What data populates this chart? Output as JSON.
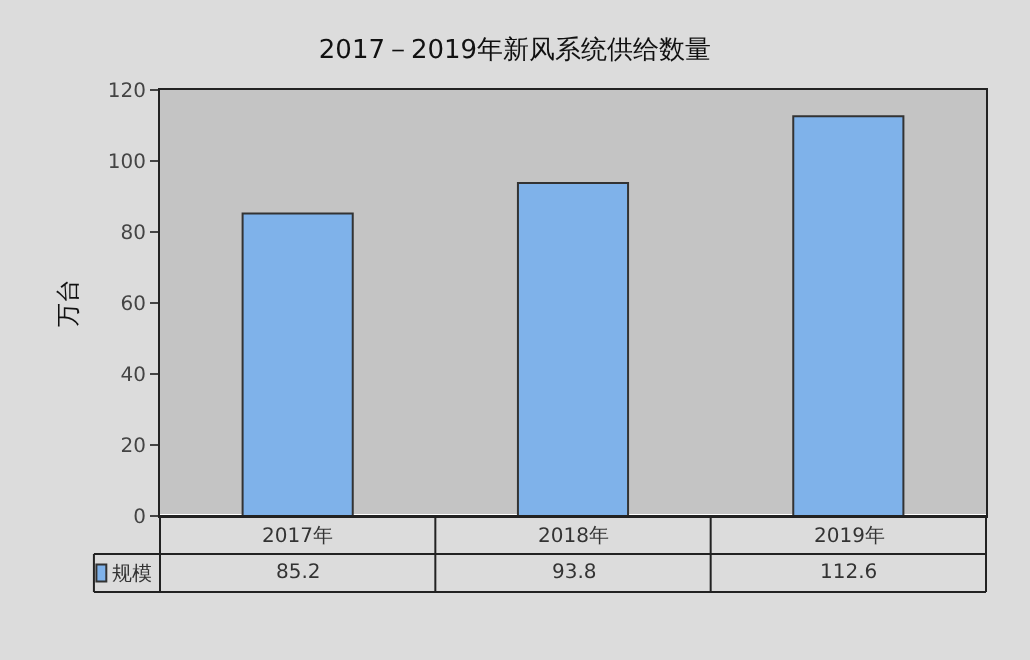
{
  "chart_data": {
    "type": "bar",
    "title": "2017－2019年新风系统供给数量",
    "ylabel": "万台",
    "categories": [
      "2017年",
      "2018年",
      "2019年"
    ],
    "series": [
      {
        "name": "规模",
        "color": "#7fb2ea",
        "values": [
          85.2,
          93.8,
          112.6
        ]
      }
    ],
    "ylim": [
      0,
      120
    ],
    "yticks": [
      0,
      20,
      40,
      60,
      80,
      100,
      120
    ],
    "grid": false,
    "legend": "bottom left",
    "data_labels": true
  }
}
